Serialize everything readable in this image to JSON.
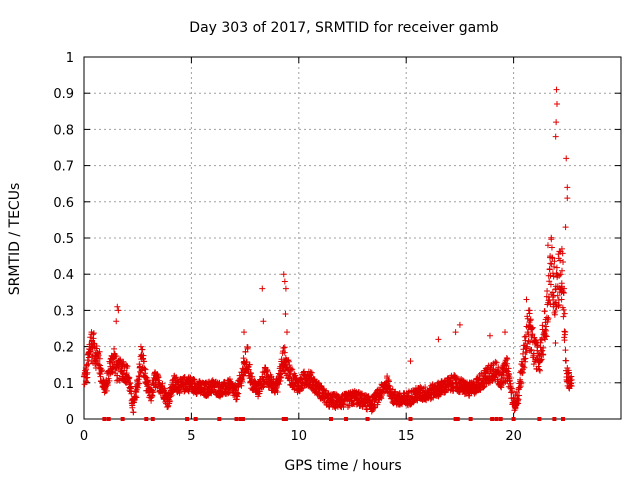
{
  "colors": {
    "series": "#e00000",
    "grid": "#a0a0a0",
    "axis": "#000000"
  },
  "chart_data": {
    "type": "scatter",
    "title": "Day 303 of 2017, SRMTID for receiver gamb",
    "xlabel": "GPS time / hours",
    "ylabel": "SRMTID / TECUs",
    "xlim": [
      0,
      25
    ],
    "ylim": [
      0,
      1
    ],
    "grid": true,
    "x_ticks": [
      "0",
      "5",
      "10",
      "15",
      "20"
    ],
    "x_tick_values": [
      0,
      5,
      10,
      15,
      20
    ],
    "y_ticks": [
      "0",
      "0.1",
      "0.2",
      "0.3",
      "0.4",
      "0.5",
      "0.6",
      "0.7",
      "0.8",
      "0.9",
      "1"
    ],
    "y_tick_values": [
      0,
      0.1,
      0.2,
      0.3,
      0.4,
      0.5,
      0.6,
      0.7,
      0.8,
      0.9,
      1
    ],
    "marker": "+",
    "series": [
      {
        "name": "SRMTID",
        "profile": [
          [
            0.0,
            0.11
          ],
          [
            0.15,
            0.13
          ],
          [
            0.3,
            0.21
          ],
          [
            0.5,
            0.19
          ],
          [
            0.7,
            0.16
          ],
          [
            0.85,
            0.11
          ],
          [
            1.0,
            0.08
          ],
          [
            1.2,
            0.14
          ],
          [
            1.4,
            0.17
          ],
          [
            1.55,
            0.13
          ],
          [
            1.8,
            0.14
          ],
          [
            2.05,
            0.12
          ],
          [
            2.3,
            0.03
          ],
          [
            2.5,
            0.1
          ],
          [
            2.7,
            0.17
          ],
          [
            2.9,
            0.1
          ],
          [
            3.1,
            0.06
          ],
          [
            3.3,
            0.11
          ],
          [
            3.6,
            0.09
          ],
          [
            3.9,
            0.05
          ],
          [
            4.2,
            0.1
          ],
          [
            4.5,
            0.09
          ],
          [
            4.8,
            0.1
          ],
          [
            5.2,
            0.09
          ],
          [
            5.6,
            0.08
          ],
          [
            6.0,
            0.09
          ],
          [
            6.4,
            0.08
          ],
          [
            6.8,
            0.09
          ],
          [
            7.1,
            0.07
          ],
          [
            7.4,
            0.13
          ],
          [
            7.6,
            0.17
          ],
          [
            7.8,
            0.1
          ],
          [
            8.1,
            0.08
          ],
          [
            8.4,
            0.12
          ],
          [
            8.7,
            0.1
          ],
          [
            9.0,
            0.09
          ],
          [
            9.3,
            0.17
          ],
          [
            9.6,
            0.12
          ],
          [
            10.0,
            0.09
          ],
          [
            10.4,
            0.12
          ],
          [
            10.8,
            0.09
          ],
          [
            11.1,
            0.07
          ],
          [
            11.4,
            0.05
          ],
          [
            11.8,
            0.05
          ],
          [
            12.2,
            0.05
          ],
          [
            12.6,
            0.06
          ],
          [
            13.0,
            0.05
          ],
          [
            13.4,
            0.04
          ],
          [
            13.8,
            0.07
          ],
          [
            14.1,
            0.1
          ],
          [
            14.4,
            0.06
          ],
          [
            14.8,
            0.05
          ],
          [
            15.2,
            0.06
          ],
          [
            15.6,
            0.07
          ],
          [
            16.0,
            0.07
          ],
          [
            16.4,
            0.08
          ],
          [
            16.8,
            0.09
          ],
          [
            17.2,
            0.1
          ],
          [
            17.6,
            0.09
          ],
          [
            18.0,
            0.08
          ],
          [
            18.4,
            0.1
          ],
          [
            18.8,
            0.12
          ],
          [
            19.1,
            0.14
          ],
          [
            19.4,
            0.11
          ],
          [
            19.7,
            0.14
          ],
          [
            20.0,
            0.04
          ],
          [
            20.2,
            0.06
          ],
          [
            20.5,
            0.18
          ],
          [
            20.7,
            0.26
          ],
          [
            20.9,
            0.2
          ],
          [
            21.2,
            0.16
          ],
          [
            21.5,
            0.27
          ],
          [
            21.75,
            0.42
          ],
          [
            21.9,
            0.36
          ],
          [
            22.1,
            0.4
          ],
          [
            22.3,
            0.38
          ],
          [
            22.45,
            0.12
          ],
          [
            22.7,
            0.1
          ]
        ],
        "outliers": [
          [
            1.55,
            0.31
          ],
          [
            1.6,
            0.3
          ],
          [
            1.5,
            0.27
          ],
          [
            0.35,
            0.24
          ],
          [
            2.65,
            0.2
          ],
          [
            7.45,
            0.24
          ],
          [
            8.3,
            0.36
          ],
          [
            8.35,
            0.27
          ],
          [
            9.3,
            0.4
          ],
          [
            9.35,
            0.38
          ],
          [
            9.4,
            0.36
          ],
          [
            9.38,
            0.29
          ],
          [
            9.45,
            0.24
          ],
          [
            15.2,
            0.16
          ],
          [
            16.5,
            0.22
          ],
          [
            17.3,
            0.24
          ],
          [
            17.5,
            0.26
          ],
          [
            18.9,
            0.23
          ],
          [
            19.6,
            0.24
          ],
          [
            20.6,
            0.33
          ],
          [
            20.75,
            0.3
          ],
          [
            21.6,
            0.48
          ],
          [
            21.7,
            0.45
          ],
          [
            21.85,
            0.31
          ],
          [
            21.95,
            0.21
          ],
          [
            22.0,
            0.91
          ],
          [
            22.02,
            0.87
          ],
          [
            21.98,
            0.82
          ],
          [
            21.96,
            0.78
          ],
          [
            22.25,
            0.47
          ],
          [
            22.45,
            0.72
          ],
          [
            22.5,
            0.64
          ],
          [
            22.5,
            0.61
          ],
          [
            22.42,
            0.53
          ],
          [
            22.35,
            0.36
          ]
        ]
      }
    ],
    "zero_markers_x": [
      0.95,
      1.15,
      1.8,
      2.9,
      3.2,
      4.8,
      5.2,
      6.3,
      7.1,
      7.3,
      7.4,
      9.3,
      9.4,
      11.5,
      12.2,
      13.2,
      15.2,
      17.3,
      17.4,
      18.0,
      19.0,
      19.2,
      19.4,
      20.0,
      21.2,
      21.9,
      22.3
    ]
  }
}
